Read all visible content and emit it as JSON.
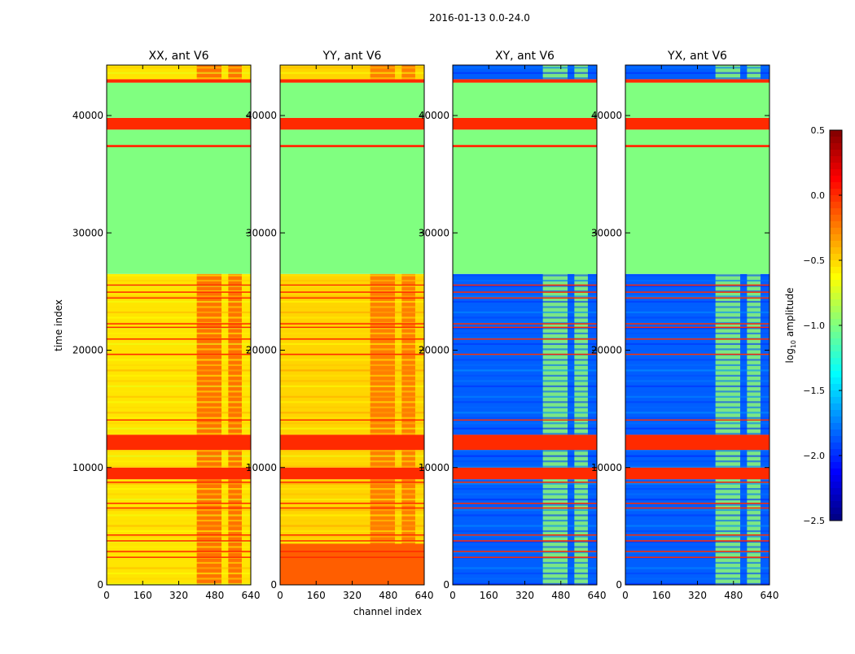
{
  "chart_data": {
    "type": "heatmap",
    "suptitle": "2016-01-13 0.0-24.0",
    "xlabel": "channel index",
    "ylabel": "time index",
    "xlim": [
      0,
      640
    ],
    "ylim": [
      0,
      44300
    ],
    "xticks": [
      "0",
      "160",
      "320",
      "480",
      "640"
    ],
    "yticks": [
      "0",
      "10000",
      "20000",
      "30000",
      "40000"
    ],
    "colorbar": {
      "label_main": "log",
      "label_sub": "10",
      "label_rest": " amplitude",
      "range": [
        -2.5,
        0.5
      ],
      "ticks": [
        "0.5",
        "0.0",
        "−0.5",
        "−1.0",
        "−1.5",
        "−2.0",
        "−2.5"
      ],
      "colormap": "jet"
    },
    "hot_channels": [
      [
        400,
        510
      ],
      [
        540,
        600
      ]
    ],
    "flag_value": -1.0,
    "panels": [
      {
        "title": "XX, ant V6",
        "base": -0.55,
        "hot": -0.15,
        "low_block": null
      },
      {
        "title": "YY, ant V6",
        "base": -0.5,
        "hot": -0.2,
        "low_block": {
          "t0": 0,
          "t1": 3500,
          "value": -0.15
        }
      },
      {
        "title": "XY, ant V6",
        "base": -1.85,
        "hot": -0.95,
        "low_block": null
      },
      {
        "title": "YX, ant V6",
        "base": -1.85,
        "hot": -0.95,
        "low_block": null
      }
    ],
    "time_bands": [
      {
        "t0": 0,
        "t1": 9000,
        "kind": "data"
      },
      {
        "t0": 9000,
        "t1": 10000,
        "kind": "red"
      },
      {
        "t0": 10000,
        "t1": 11500,
        "kind": "data"
      },
      {
        "t0": 11500,
        "t1": 12800,
        "kind": "red"
      },
      {
        "t0": 12800,
        "t1": 26500,
        "kind": "data"
      },
      {
        "t0": 26500,
        "t1": 37300,
        "kind": "flag"
      },
      {
        "t0": 37300,
        "t1": 37500,
        "kind": "red"
      },
      {
        "t0": 37500,
        "t1": 38800,
        "kind": "flag"
      },
      {
        "t0": 38800,
        "t1": 39800,
        "kind": "red"
      },
      {
        "t0": 39800,
        "t1": 42800,
        "kind": "flag"
      },
      {
        "t0": 42800,
        "t1": 43100,
        "kind": "red"
      },
      {
        "t0": 43100,
        "t1": 44300,
        "kind": "data"
      }
    ],
    "red_lines": [
      2400,
      2900,
      3800,
      4300,
      6600,
      7000,
      8800,
      14100,
      19700,
      21000,
      22000,
      22300,
      24500,
      25000,
      25600
    ],
    "red_value": 0.0
  }
}
